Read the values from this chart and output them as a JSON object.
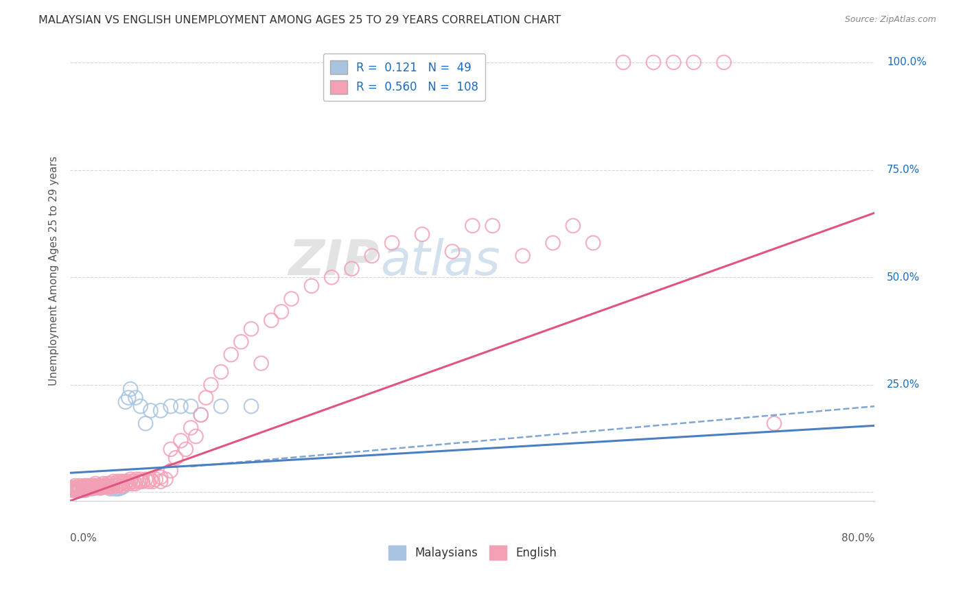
{
  "title": "MALAYSIAN VS ENGLISH UNEMPLOYMENT AMONG AGES 25 TO 29 YEARS CORRELATION CHART",
  "source": "Source: ZipAtlas.com",
  "ylabel": "Unemployment Among Ages 25 to 29 years",
  "xmin": 0.0,
  "xmax": 0.8,
  "ymin": -0.02,
  "ymax": 1.05,
  "malaysian_color": "#a8c4e0",
  "english_color": "#f4a0b5",
  "malaysian_line_color": "#4a7fc1",
  "english_line_color": "#e05580",
  "malaysian_R": 0.121,
  "malaysian_N": 49,
  "english_R": 0.56,
  "english_N": 108,
  "legend_text_color": "#1a6bbf",
  "right_axis_color": "#1a6bbf",
  "title_color": "#333333",
  "source_color": "#888888",
  "ylabel_color": "#555555",
  "grid_color": "#cccccc",
  "watermark_ZIP_color": "#c8c8c8",
  "watermark_atlas_color": "#a8c4e0",
  "malaysian_scatter_x": [
    0.0,
    0.003,
    0.005,
    0.006,
    0.007,
    0.008,
    0.009,
    0.01,
    0.01,
    0.012,
    0.013,
    0.014,
    0.015,
    0.015,
    0.016,
    0.017,
    0.018,
    0.02,
    0.021,
    0.022,
    0.023,
    0.025,
    0.026,
    0.028,
    0.03,
    0.031,
    0.033,
    0.035,
    0.038,
    0.04,
    0.042,
    0.045,
    0.048,
    0.05,
    0.052,
    0.055,
    0.058,
    0.06,
    0.065,
    0.07,
    0.075,
    0.08,
    0.09,
    0.1,
    0.11,
    0.12,
    0.13,
    0.15,
    0.18
  ],
  "malaysian_scatter_y": [
    0.005,
    0.01,
    0.005,
    0.008,
    0.01,
    0.005,
    0.008,
    0.005,
    0.01,
    0.008,
    0.005,
    0.01,
    0.005,
    0.015,
    0.01,
    0.008,
    0.012,
    0.01,
    0.008,
    0.01,
    0.015,
    0.01,
    0.012,
    0.015,
    0.01,
    0.015,
    0.012,
    0.015,
    0.012,
    0.008,
    0.01,
    0.008,
    0.008,
    0.01,
    0.012,
    0.21,
    0.22,
    0.24,
    0.22,
    0.2,
    0.16,
    0.19,
    0.19,
    0.2,
    0.2,
    0.2,
    0.18,
    0.2,
    0.2
  ],
  "english_scatter_x": [
    0.0,
    0.002,
    0.003,
    0.004,
    0.005,
    0.005,
    0.006,
    0.007,
    0.008,
    0.009,
    0.01,
    0.01,
    0.012,
    0.013,
    0.014,
    0.015,
    0.015,
    0.016,
    0.017,
    0.018,
    0.019,
    0.02,
    0.021,
    0.022,
    0.023,
    0.024,
    0.025,
    0.025,
    0.027,
    0.028,
    0.03,
    0.03,
    0.032,
    0.033,
    0.035,
    0.036,
    0.037,
    0.038,
    0.04,
    0.04,
    0.042,
    0.043,
    0.045,
    0.046,
    0.047,
    0.048,
    0.05,
    0.05,
    0.052,
    0.053,
    0.055,
    0.056,
    0.058,
    0.06,
    0.06,
    0.062,
    0.063,
    0.065,
    0.066,
    0.068,
    0.07,
    0.07,
    0.072,
    0.075,
    0.078,
    0.08,
    0.082,
    0.085,
    0.09,
    0.09,
    0.095,
    0.1,
    0.1,
    0.105,
    0.11,
    0.115,
    0.12,
    0.125,
    0.13,
    0.135,
    0.14,
    0.15,
    0.16,
    0.17,
    0.18,
    0.19,
    0.2,
    0.21,
    0.22,
    0.24,
    0.26,
    0.28,
    0.3,
    0.32,
    0.35,
    0.38,
    0.4,
    0.42,
    0.45,
    0.48,
    0.5,
    0.52,
    0.55,
    0.58,
    0.6,
    0.62,
    0.65,
    0.7
  ],
  "english_scatter_y": [
    0.01,
    0.005,
    0.01,
    0.005,
    0.008,
    0.015,
    0.01,
    0.005,
    0.01,
    0.015,
    0.005,
    0.012,
    0.01,
    0.008,
    0.015,
    0.005,
    0.01,
    0.012,
    0.015,
    0.01,
    0.012,
    0.015,
    0.01,
    0.012,
    0.015,
    0.01,
    0.015,
    0.02,
    0.012,
    0.015,
    0.01,
    0.015,
    0.012,
    0.02,
    0.015,
    0.012,
    0.02,
    0.015,
    0.012,
    0.02,
    0.015,
    0.025,
    0.02,
    0.015,
    0.025,
    0.015,
    0.02,
    0.025,
    0.015,
    0.025,
    0.02,
    0.025,
    0.02,
    0.025,
    0.03,
    0.02,
    0.025,
    0.02,
    0.03,
    0.025,
    0.025,
    0.03,
    0.025,
    0.03,
    0.025,
    0.03,
    0.025,
    0.03,
    0.025,
    0.035,
    0.03,
    0.05,
    0.1,
    0.08,
    0.12,
    0.1,
    0.15,
    0.13,
    0.18,
    0.22,
    0.25,
    0.28,
    0.32,
    0.35,
    0.38,
    0.3,
    0.4,
    0.42,
    0.45,
    0.48,
    0.5,
    0.52,
    0.55,
    0.58,
    0.6,
    0.56,
    0.62,
    0.62,
    0.55,
    0.58,
    0.62,
    0.58,
    1.0,
    1.0,
    1.0,
    1.0,
    1.0,
    0.16
  ]
}
